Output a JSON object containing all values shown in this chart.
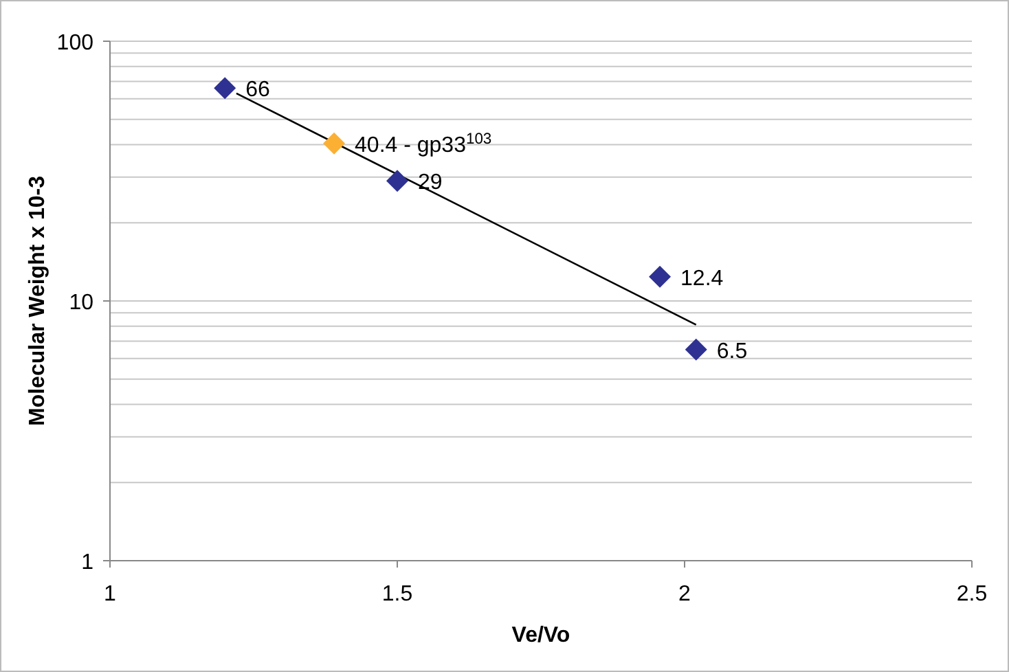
{
  "chart_data": {
    "type": "scatter",
    "xlabel": "Ve/Vo",
    "ylabel": "Molecular Weight x 10-3",
    "log": "y",
    "grid": "y",
    "marker": "diamond",
    "xlim": [
      1,
      2.5
    ],
    "xticks": [
      {
        "value": 1,
        "label": "1"
      },
      {
        "value": 1.5,
        "label": "1.5"
      },
      {
        "value": 2,
        "label": "2"
      },
      {
        "value": 2.5,
        "label": "2.5"
      }
    ],
    "ylim": [
      1,
      100
    ],
    "yticks": [
      1,
      {
        "value": 2,
        "label": null
      },
      {
        "value": 3,
        "label": null
      },
      {
        "value": 4,
        "label": null
      },
      {
        "value": 5,
        "label": null
      },
      {
        "value": 6,
        "label": null
      },
      {
        "value": 7,
        "label": null
      },
      {
        "value": 8,
        "label": null
      },
      {
        "value": 9,
        "label": null
      },
      10,
      {
        "value": 20,
        "label": null
      },
      {
        "value": 30,
        "label": null
      },
      {
        "value": 40,
        "label": null
      },
      {
        "value": 50,
        "label": null
      },
      {
        "value": 60,
        "label": null
      },
      {
        "value": 70,
        "label": null
      },
      {
        "value": 80,
        "label": null
      },
      {
        "value": 90,
        "label": null
      },
      100
    ],
    "series": [
      {
        "type": "line",
        "color": "#000000",
        "marker": "none",
        "x": [
          1.22,
          2.02
        ],
        "values": [
          63,
          8.1
        ]
      },
      {
        "color": "#2e3192",
        "x": [
          1.2,
          1.5,
          1.957,
          2.02
        ],
        "values": [
          66,
          29,
          12.4,
          6.5
        ],
        "value_labels": [
          "66",
          "29",
          "12.4",
          "6.5"
        ]
      },
      {
        "color": "#fbb034",
        "x": [
          1.39
        ],
        "values": [
          40.4
        ],
        "value_labels": [
          "40.4 - gp33$^{103}$"
        ]
      }
    ]
  }
}
